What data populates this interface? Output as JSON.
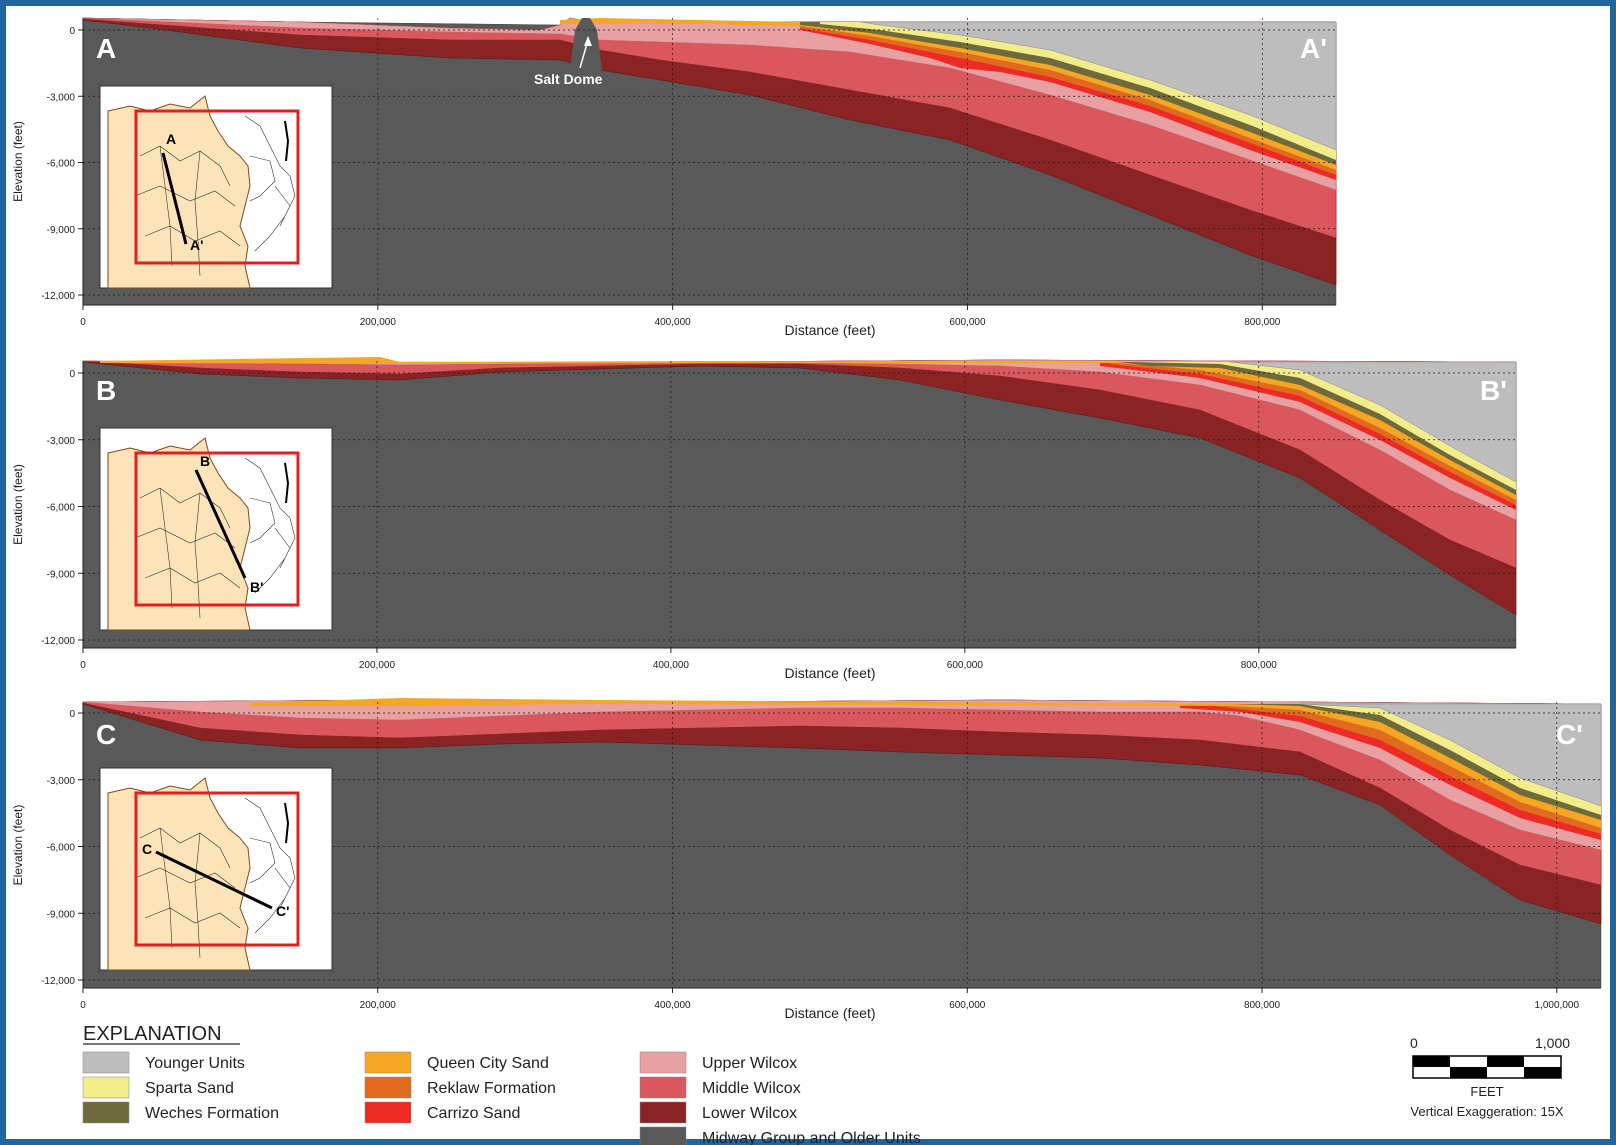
{
  "panels": [
    {
      "id": "a",
      "start_label": "A",
      "end_label": "A'",
      "inset_start": "A",
      "inset_end": "A'",
      "xmax": 850000,
      "x_ticks": [
        0,
        200000,
        400000,
        600000,
        800000
      ],
      "x_tick_labels": [
        "0",
        "200,000",
        "400,000",
        "600,000",
        "800,000"
      ],
      "xlabel": "Distance (feet)",
      "ylabel": "Elevation (feet)",
      "y_ticks": [
        0,
        -3000,
        -6000,
        -9000,
        -12000
      ],
      "y_tick_labels": [
        "0",
        "-3,000",
        "-6,000",
        "-9,000",
        "-12,000"
      ],
      "annotation": "Salt Dome",
      "annotation_at_ft": 340000
    },
    {
      "id": "b",
      "start_label": "B",
      "end_label": "B'",
      "inset_start": "B",
      "inset_end": "B'",
      "xmax": 975000,
      "x_ticks": [
        0,
        200000,
        400000,
        600000,
        800000
      ],
      "x_tick_labels": [
        "0",
        "200,000",
        "400,000",
        "600,000",
        "800,000"
      ],
      "xlabel": "Distance (feet)",
      "ylabel": "Elevation (feet)",
      "y_ticks": [
        0,
        -3000,
        -6000,
        -9000,
        -12000
      ],
      "y_tick_labels": [
        "0",
        "-3,000",
        "-6,000",
        "-9,000",
        "-12,000"
      ]
    },
    {
      "id": "c",
      "start_label": "C",
      "end_label": "C'",
      "inset_start": "C",
      "inset_end": "C'",
      "xmax": 1030000,
      "x_ticks": [
        0,
        200000,
        400000,
        600000,
        800000,
        1000000
      ],
      "x_tick_labels": [
        "0",
        "200,000",
        "400,000",
        "600,000",
        "800,000",
        "1,000,000"
      ],
      "xlabel": "Distance (feet)",
      "ylabel": "Elevation (feet)",
      "y_ticks": [
        0,
        -3000,
        -6000,
        -9000,
        -12000
      ],
      "y_tick_labels": [
        "0",
        "-3,000",
        "-6,000",
        "-9,000",
        "-12,000"
      ]
    }
  ],
  "explanation": {
    "title": "EXPLANATION",
    "items": [
      {
        "label": "Younger Units",
        "color": "#bdbdbd"
      },
      {
        "label": "Sparta Sand",
        "color": "#f3ec8a"
      },
      {
        "label": "Weches Formation",
        "color": "#6e6a3c"
      },
      {
        "label": "Queen City Sand",
        "color": "#f5a623"
      },
      {
        "label": "Reklaw Formation",
        "color": "#e06a1e"
      },
      {
        "label": "Carrizo Sand",
        "color": "#ee2a24"
      },
      {
        "label": "Upper Wilcox",
        "color": "#e9a0a2"
      },
      {
        "label": "Middle Wilcox",
        "color": "#d9575d"
      },
      {
        "label": "Lower Wilcox",
        "color": "#8a2424"
      },
      {
        "label": "Midway Group and Older Units",
        "color": "#595959"
      }
    ]
  },
  "scale_bar": {
    "left_label": "0",
    "right_label": "1,000",
    "unit_label": "FEET",
    "exaggeration": "Vertical Exaggeration: 15X"
  }
}
